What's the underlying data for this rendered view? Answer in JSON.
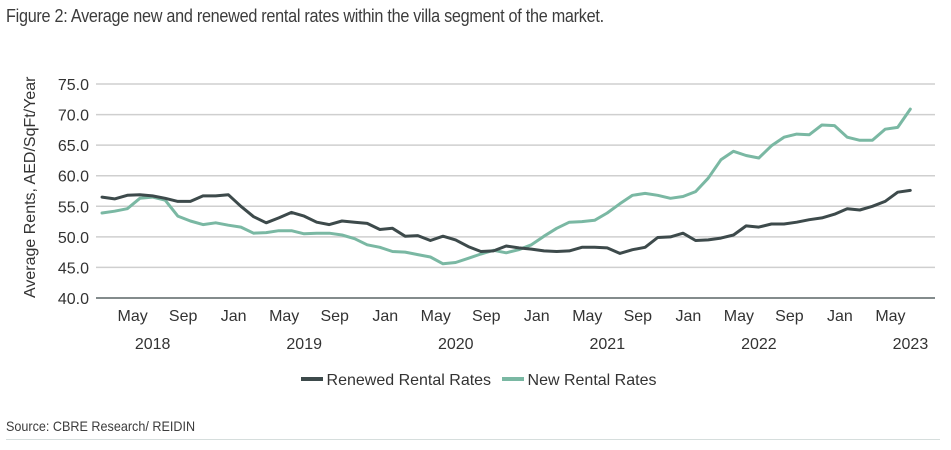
{
  "chart_data": {
    "type": "line",
    "title": "Figure 2: Average new and renewed rental rates within the villa segment of the market.",
    "xlabel": "",
    "ylabel": "Average Rents, AED/SqFt/Year",
    "ylim": [
      40,
      75
    ],
    "yticks": [
      "40.0",
      "45.0",
      "50.0",
      "55.0",
      "60.0",
      "65.0",
      "70.0",
      "75.0"
    ],
    "grid": true,
    "x_start": "2018-04",
    "x_ticks": [
      {
        "month": "May",
        "year": "2018",
        "index": 1
      },
      {
        "month": "Sep",
        "year": "",
        "index": 5
      },
      {
        "month": "Jan",
        "year": "",
        "index": 9
      },
      {
        "month": "May",
        "year": "2019",
        "index": 13
      },
      {
        "month": "Sep",
        "year": "",
        "index": 17
      },
      {
        "month": "Jan",
        "year": "",
        "index": 21
      },
      {
        "month": "May",
        "year": "2020",
        "index": 25
      },
      {
        "month": "Sep",
        "year": "",
        "index": 29
      },
      {
        "month": "Jan",
        "year": "",
        "index": 33
      },
      {
        "month": "May",
        "year": "2021",
        "index": 37
      },
      {
        "month": "Sep",
        "year": "",
        "index": 41
      },
      {
        "month": "Jan",
        "year": "",
        "index": 45
      },
      {
        "month": "May",
        "year": "2022",
        "index": 49
      },
      {
        "month": "Sep",
        "year": "",
        "index": 53
      },
      {
        "month": "Jan",
        "year": "",
        "index": 57
      },
      {
        "month": "May",
        "year": "2023",
        "index": 61
      }
    ],
    "legend_position": "bottom",
    "series": [
      {
        "name": "Renewed Rental Rates",
        "color": "#3d4a4b",
        "values": [
          56.5,
          56.2,
          56.8,
          56.9,
          56.7,
          56.3,
          55.8,
          55.8,
          56.7,
          56.7,
          56.9,
          55.0,
          53.3,
          52.3,
          53.1,
          54.0,
          53.4,
          52.4,
          52.0,
          52.6,
          52.4,
          52.2,
          51.2,
          51.4,
          50.1,
          50.2,
          49.4,
          50.1,
          49.5,
          48.4,
          47.6,
          47.7,
          48.5,
          48.2,
          48.0,
          47.7,
          47.6,
          47.7,
          48.3,
          48.3,
          48.2,
          47.3,
          47.9,
          48.3,
          49.9,
          50.0,
          50.6,
          49.4,
          49.5,
          49.8,
          50.3,
          51.8,
          51.6,
          52.1,
          52.1,
          52.4,
          52.8,
          53.1,
          53.7,
          54.6,
          54.4,
          55.0,
          55.8,
          57.3,
          57.6
        ]
      },
      {
        "name": "New Rental Rates",
        "color": "#7ab8a3",
        "values": [
          53.9,
          54.2,
          54.6,
          56.3,
          56.5,
          56.0,
          53.4,
          52.6,
          52.0,
          52.3,
          51.9,
          51.6,
          50.6,
          50.7,
          51.0,
          51.0,
          50.5,
          50.6,
          50.6,
          50.3,
          49.7,
          48.7,
          48.3,
          47.6,
          47.5,
          47.1,
          46.7,
          45.6,
          45.8,
          46.5,
          47.2,
          47.8,
          47.4,
          47.9,
          48.7,
          50.1,
          51.4,
          52.4,
          52.5,
          52.7,
          53.9,
          55.4,
          56.8,
          57.1,
          56.8,
          56.3,
          56.6,
          57.4,
          59.6,
          62.6,
          64.0,
          63.3,
          62.9,
          64.9,
          66.3,
          66.8,
          66.7,
          68.3,
          68.2,
          66.3,
          65.8,
          65.8,
          67.6,
          67.9,
          70.9
        ]
      }
    ],
    "source": "Source: CBRE Research/ REIDIN"
  }
}
